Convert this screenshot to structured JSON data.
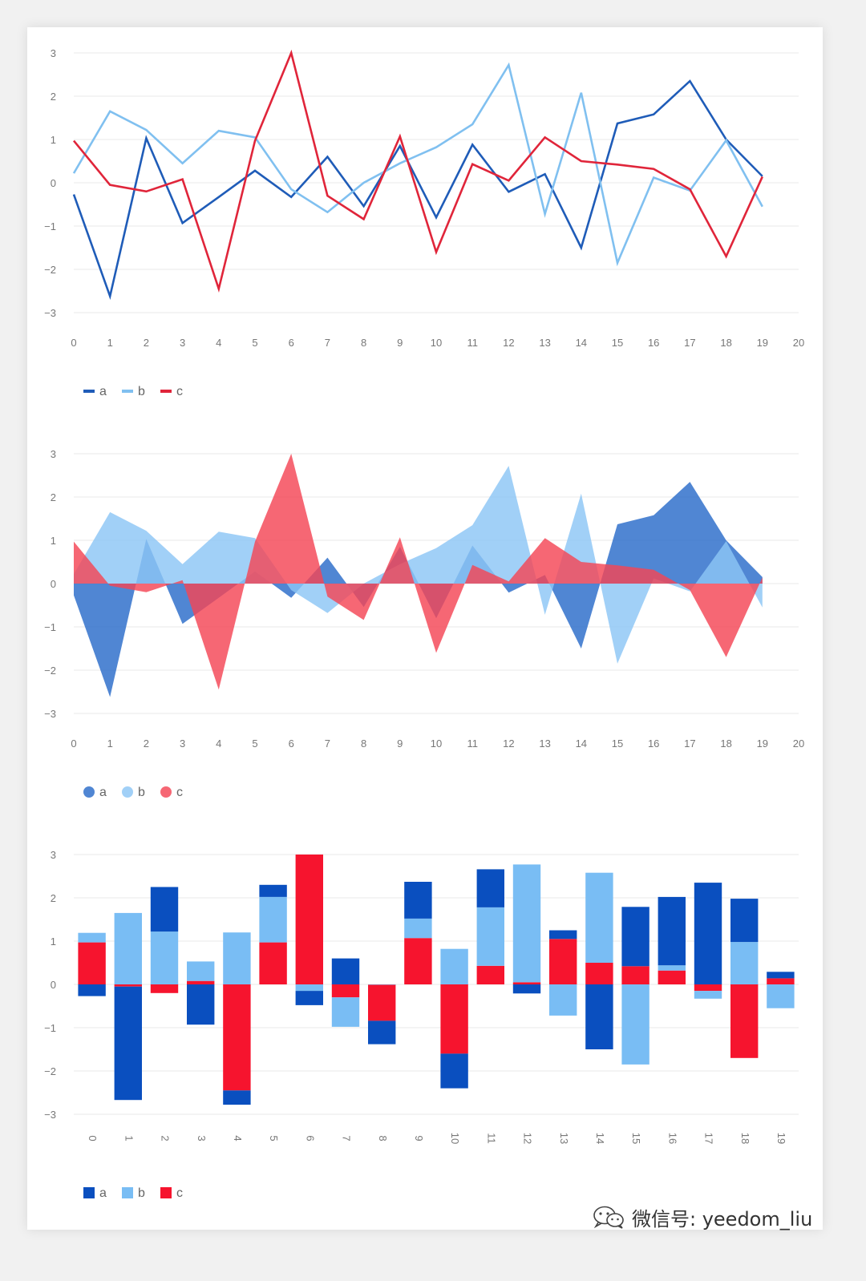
{
  "chart_data": [
    {
      "type": "line",
      "x": [
        0,
        1,
        2,
        3,
        4,
        5,
        6,
        7,
        8,
        9,
        10,
        11,
        12,
        13,
        14,
        15,
        16,
        17,
        18,
        19
      ],
      "x_ticks": [
        "0",
        "1",
        "2",
        "3",
        "4",
        "5",
        "6",
        "7",
        "8",
        "9",
        "10",
        "11",
        "12",
        "13",
        "14",
        "15",
        "16",
        "17",
        "18",
        "19",
        "20"
      ],
      "y_ticks": [
        "3",
        "2",
        "1",
        "0",
        "−1",
        "−2",
        "−3"
      ],
      "ylim": [
        -3,
        3
      ],
      "xlim": [
        0,
        20
      ],
      "grid": true,
      "legend": "bottom-left",
      "series": [
        {
          "name": "a",
          "color": "#1f5cb8",
          "values": [
            -0.27,
            -2.62,
            1.03,
            -0.93,
            -0.33,
            0.28,
            -0.33,
            0.6,
            -0.54,
            0.85,
            -0.8,
            0.88,
            -0.21,
            0.2,
            -1.5,
            1.37,
            1.58,
            2.35,
            1.0,
            0.15
          ]
        },
        {
          "name": "b",
          "color": "#80c0f0",
          "values": [
            0.22,
            1.65,
            1.22,
            0.45,
            1.2,
            1.05,
            -0.15,
            -0.68,
            0.0,
            0.45,
            0.82,
            1.35,
            2.72,
            -0.72,
            2.08,
            -1.85,
            0.12,
            -0.18,
            0.98,
            -0.55
          ]
        },
        {
          "name": "c",
          "color": "#e0253a",
          "values": [
            0.97,
            -0.05,
            -0.2,
            0.08,
            -2.45,
            0.97,
            3.0,
            -0.3,
            -0.84,
            1.07,
            -1.6,
            0.43,
            0.05,
            1.05,
            0.5,
            0.42,
            0.32,
            -0.15,
            -1.7,
            0.14
          ]
        }
      ]
    },
    {
      "type": "area",
      "x": [
        0,
        1,
        2,
        3,
        4,
        5,
        6,
        7,
        8,
        9,
        10,
        11,
        12,
        13,
        14,
        15,
        16,
        17,
        18,
        19
      ],
      "x_ticks": [
        "0",
        "1",
        "2",
        "3",
        "4",
        "5",
        "6",
        "7",
        "8",
        "9",
        "10",
        "11",
        "12",
        "13",
        "14",
        "15",
        "16",
        "17",
        "18",
        "19",
        "20"
      ],
      "y_ticks": [
        "3",
        "2",
        "1",
        "0",
        "−1",
        "−2",
        "−3"
      ],
      "ylim": [
        -3,
        3
      ],
      "xlim": [
        0,
        20
      ],
      "grid": true,
      "legend": "bottom-left",
      "series": [
        {
          "name": "a",
          "color": "#2a6bc9",
          "values": [
            -0.27,
            -2.62,
            1.03,
            -0.93,
            -0.33,
            0.28,
            -0.33,
            0.6,
            -0.54,
            0.85,
            -0.8,
            0.88,
            -0.21,
            0.2,
            -1.5,
            1.37,
            1.58,
            2.35,
            1.0,
            0.15
          ]
        },
        {
          "name": "b",
          "color": "#8cc6f5",
          "values": [
            0.22,
            1.65,
            1.22,
            0.45,
            1.2,
            1.05,
            -0.15,
            -0.68,
            0.0,
            0.45,
            0.82,
            1.35,
            2.72,
            -0.72,
            2.08,
            -1.85,
            0.12,
            -0.18,
            0.98,
            -0.55
          ]
        },
        {
          "name": "c",
          "color": "#f44556",
          "values": [
            0.97,
            -0.05,
            -0.2,
            0.08,
            -2.45,
            0.97,
            3.0,
            -0.3,
            -0.84,
            1.07,
            -1.6,
            0.43,
            0.05,
            1.05,
            0.5,
            0.42,
            0.32,
            -0.15,
            -1.7,
            0.14
          ]
        }
      ]
    },
    {
      "type": "bar",
      "stacked": true,
      "categories": [
        "0",
        "1",
        "2",
        "3",
        "4",
        "5",
        "6",
        "7",
        "8",
        "9",
        "10",
        "11",
        "12",
        "13",
        "14",
        "15",
        "16",
        "17",
        "18",
        "19"
      ],
      "y_ticks": [
        "3",
        "2",
        "1",
        "0",
        "−1",
        "−2",
        "−3"
      ],
      "ylim": [
        -3,
        3
      ],
      "grid": true,
      "legend": "bottom-left",
      "series": [
        {
          "name": "a",
          "color": "#0a4fbf",
          "values": [
            -0.27,
            -2.62,
            1.03,
            -0.93,
            -0.33,
            0.28,
            -0.33,
            0.6,
            -0.54,
            0.85,
            -0.8,
            0.88,
            -0.21,
            0.2,
            -1.5,
            1.37,
            1.58,
            2.35,
            1.0,
            0.15
          ]
        },
        {
          "name": "b",
          "color": "#79bdf4",
          "values": [
            0.22,
            1.65,
            1.22,
            0.45,
            1.2,
            1.05,
            -0.15,
            -0.68,
            0.0,
            0.45,
            0.82,
            1.35,
            2.72,
            -0.72,
            2.08,
            -1.85,
            0.12,
            -0.18,
            0.98,
            -0.55
          ]
        },
        {
          "name": "c",
          "color": "#f6142e",
          "values": [
            0.97,
            -0.05,
            -0.2,
            0.08,
            -2.45,
            0.97,
            3.0,
            -0.3,
            -0.84,
            1.07,
            -1.6,
            0.43,
            0.05,
            1.05,
            0.5,
            0.42,
            0.32,
            -0.15,
            -1.7,
            0.14
          ]
        }
      ]
    }
  ],
  "watermark": {
    "text": "微信号: yeedom_liu",
    "icon": "wechat-icon"
  }
}
